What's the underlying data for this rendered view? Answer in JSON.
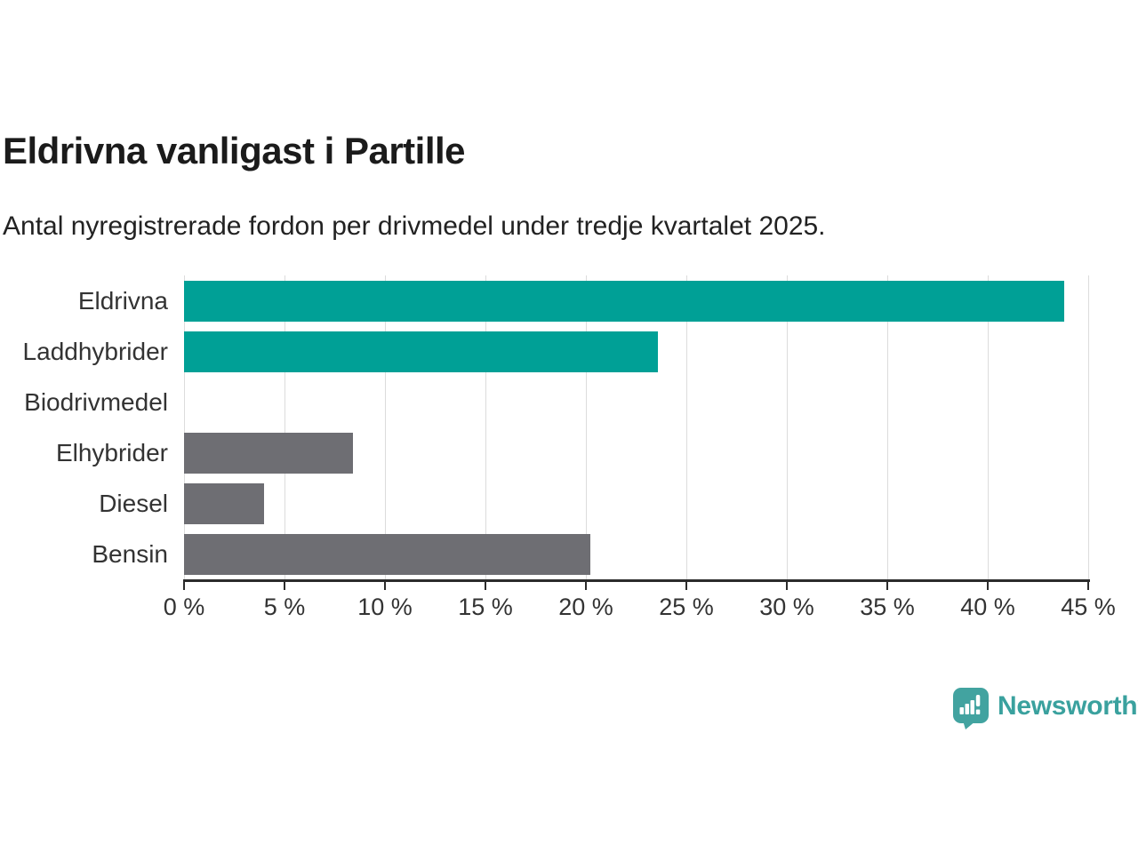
{
  "header": {
    "title": "Eldrivna vanligast i Partille",
    "subtitle": "Antal nyregistrerade fordon per drivmedel under tredje kvartalet 2025."
  },
  "chart_data": {
    "type": "bar",
    "orientation": "horizontal",
    "title": "Eldrivna vanligast i Partille",
    "subtitle": "Antal nyregistrerade fordon per drivmedel under tredje kvartalet 2025.",
    "categories": [
      "Eldrivna",
      "Laddhybrider",
      "Biodrivmedel",
      "Elhybrider",
      "Diesel",
      "Bensin"
    ],
    "values": [
      43.8,
      23.6,
      0,
      8.4,
      4.0,
      20.2
    ],
    "unit": "%",
    "bar_colors": [
      "#00a096",
      "#00a096",
      "#6e6e73",
      "#6e6e73",
      "#6e6e73",
      "#6e6e73"
    ],
    "xlim": [
      0,
      45
    ],
    "x_ticks": [
      0,
      5,
      10,
      15,
      20,
      25,
      30,
      35,
      40,
      45
    ],
    "x_tick_labels": [
      "0 %",
      "5 %",
      "10 %",
      "15 %",
      "20 %",
      "25 %",
      "30 %",
      "35 %",
      "40 %",
      "45 %"
    ],
    "grid": true,
    "legend_position": "none",
    "xlabel": "",
    "ylabel": ""
  },
  "colors": {
    "teal": "#00a096",
    "gray": "#6e6e73",
    "grid": "#dcdcdc",
    "axis": "#2b2b2b",
    "label_text": "#333333",
    "title_text": "#1b1b1b",
    "logo_teal": "#3aa19e"
  },
  "footer": {
    "brand": "Newsworthy",
    "logo_icon": "newsworthy-speech-bubble-bars-icon"
  }
}
